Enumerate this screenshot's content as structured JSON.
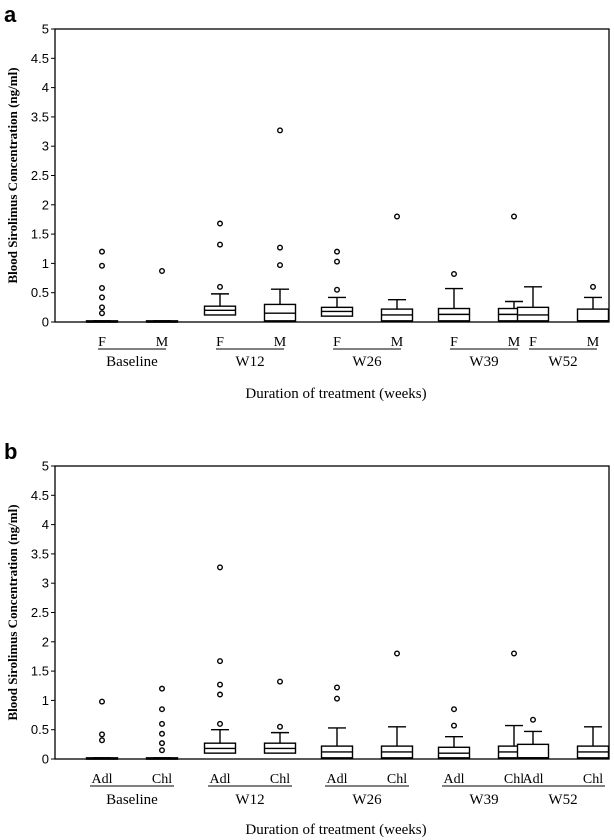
{
  "chart_data": [
    {
      "panel": "a",
      "type": "box",
      "ylabel": "Blood Sirolimus Concentration (ng/ml)",
      "xlabel": "Duration of treatment (weeks)",
      "ylim": [
        0,
        5
      ],
      "yticks": [
        "0",
        "0.5",
        "1",
        "1.5",
        "2",
        "2.5",
        "3",
        "3.5",
        "4",
        "4.5",
        "5"
      ],
      "groups": [
        {
          "label": "Baseline",
          "boxes": [
            {
              "label": "F",
              "q1": 0,
              "median": 0,
              "q3": 0.02,
              "whisker_low": 0,
              "whisker_high": 0.02,
              "outliers": [
                0.15,
                0.25,
                0.42,
                0.58,
                0.96,
                1.2
              ]
            },
            {
              "label": "M",
              "q1": 0,
              "median": 0,
              "q3": 0.02,
              "whisker_low": 0,
              "whisker_high": 0.02,
              "outliers": [
                0.87
              ]
            }
          ]
        },
        {
          "label": "W12",
          "boxes": [
            {
              "label": "F",
              "q1": 0.12,
              "median": 0.2,
              "q3": 0.27,
              "whisker_low": 0,
              "whisker_high": 0.48,
              "outliers": [
                0.6,
                1.32,
                1.68
              ]
            },
            {
              "label": "M",
              "q1": 0.02,
              "median": 0.15,
              "q3": 0.3,
              "whisker_low": 0,
              "whisker_high": 0.56,
              "outliers": [
                0.97,
                1.27,
                3.27
              ]
            }
          ]
        },
        {
          "label": "W26",
          "boxes": [
            {
              "label": "F",
              "q1": 0.1,
              "median": 0.18,
              "q3": 0.25,
              "whisker_low": 0,
              "whisker_high": 0.42,
              "outliers": [
                0.55,
                1.03,
                1.2
              ]
            },
            {
              "label": "M",
              "q1": 0.02,
              "median": 0.12,
              "q3": 0.22,
              "whisker_low": 0,
              "whisker_high": 0.38,
              "outliers": [
                1.8
              ]
            }
          ]
        },
        {
          "label": "W39",
          "boxes": [
            {
              "label": "F",
              "q1": 0.02,
              "median": 0.13,
              "q3": 0.23,
              "whisker_low": 0,
              "whisker_high": 0.57,
              "outliers": [
                0.82
              ]
            },
            {
              "label": "M",
              "q1": 0.02,
              "median": 0.13,
              "q3": 0.23,
              "whisker_low": 0,
              "whisker_high": 0.35,
              "outliers": [
                1.8
              ]
            }
          ]
        },
        {
          "label": "W52",
          "boxes": [
            {
              "label": "F",
              "q1": 0.02,
              "median": 0.12,
              "q3": 0.25,
              "whisker_low": 0,
              "whisker_high": 0.6,
              "outliers": []
            },
            {
              "label": "M",
              "q1": 0.02,
              "median": 0.02,
              "q3": 0.22,
              "whisker_low": 0,
              "whisker_high": 0.42,
              "outliers": [
                0.6
              ]
            }
          ]
        }
      ]
    },
    {
      "panel": "b",
      "type": "box",
      "ylabel": "Blood Sirolimus Concentration (ng/ml)",
      "xlabel": "Duration of treatment (weeks)",
      "ylim": [
        0,
        5
      ],
      "yticks": [
        "0",
        "0.5",
        "1",
        "1.5",
        "2",
        "2.5",
        "3",
        "3.5",
        "4",
        "4.5",
        "5"
      ],
      "groups": [
        {
          "label": "Baseline",
          "boxes": [
            {
              "label": "Adl",
              "q1": 0,
              "median": 0,
              "q3": 0.02,
              "whisker_low": 0,
              "whisker_high": 0.02,
              "outliers": [
                0.32,
                0.42,
                0.98
              ]
            },
            {
              "label": "Chl",
              "q1": 0,
              "median": 0,
              "q3": 0.02,
              "whisker_low": 0,
              "whisker_high": 0.02,
              "outliers": [
                0.15,
                0.27,
                0.43,
                0.6,
                0.85,
                1.2
              ]
            }
          ]
        },
        {
          "label": "W12",
          "boxes": [
            {
              "label": "Adl",
              "q1": 0.1,
              "median": 0.18,
              "q3": 0.27,
              "whisker_low": 0,
              "whisker_high": 0.5,
              "outliers": [
                0.6,
                1.1,
                1.27,
                1.67,
                3.27
              ]
            },
            {
              "label": "Chl",
              "q1": 0.1,
              "median": 0.18,
              "q3": 0.27,
              "whisker_low": 0,
              "whisker_high": 0.45,
              "outliers": [
                0.55,
                1.32
              ]
            }
          ]
        },
        {
          "label": "W26",
          "boxes": [
            {
              "label": "Adl",
              "q1": 0.02,
              "median": 0.12,
              "q3": 0.22,
              "whisker_low": 0,
              "whisker_high": 0.53,
              "outliers": [
                1.03,
                1.22
              ]
            },
            {
              "label": "Chl",
              "q1": 0.02,
              "median": 0.12,
              "q3": 0.22,
              "whisker_low": 0,
              "whisker_high": 0.55,
              "outliers": [
                1.8
              ]
            }
          ]
        },
        {
          "label": "W39",
          "boxes": [
            {
              "label": "Adl",
              "q1": 0.02,
              "median": 0.1,
              "q3": 0.2,
              "whisker_low": 0,
              "whisker_high": 0.38,
              "outliers": [
                0.57,
                0.85
              ]
            },
            {
              "label": "Chl",
              "q1": 0.02,
              "median": 0.12,
              "q3": 0.22,
              "whisker_low": 0,
              "whisker_high": 0.57,
              "outliers": [
                1.8
              ]
            }
          ]
        },
        {
          "label": "W52",
          "boxes": [
            {
              "label": "Adl",
              "q1": 0.02,
              "median": 0.02,
              "q3": 0.25,
              "whisker_low": 0,
              "whisker_high": 0.47,
              "outliers": [
                0.67
              ]
            },
            {
              "label": "Chl",
              "q1": 0.02,
              "median": 0.12,
              "q3": 0.22,
              "whisker_low": 0,
              "whisker_high": 0.55,
              "outliers": []
            }
          ]
        }
      ]
    }
  ]
}
